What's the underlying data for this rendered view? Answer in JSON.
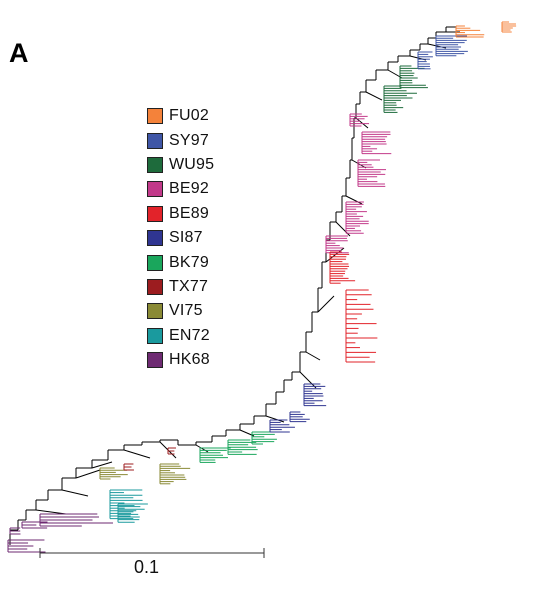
{
  "figure": {
    "panel_label": "A",
    "scale_bar_label": "0.1"
  },
  "legend": {
    "items": [
      {
        "label": "FU02",
        "color": "#f4823a"
      },
      {
        "label": "SY97",
        "color": "#3f56a6"
      },
      {
        "label": "WU95",
        "color": "#1e6b3c"
      },
      {
        "label": "BE92",
        "color": "#c2398a"
      },
      {
        "label": "BE89",
        "color": "#e2232a"
      },
      {
        "label": "SI87",
        "color": "#2f3591"
      },
      {
        "label": "BK79",
        "color": "#1aa65c"
      },
      {
        "label": "TX77",
        "color": "#9c1c1f"
      },
      {
        "label": "VI75",
        "color": "#8a8a35"
      },
      {
        "label": "EN72",
        "color": "#1a9a9e"
      },
      {
        "label": "HK68",
        "color": "#6e2a72"
      }
    ]
  },
  "tree": {
    "trunk_color": "#000000"
  }
}
